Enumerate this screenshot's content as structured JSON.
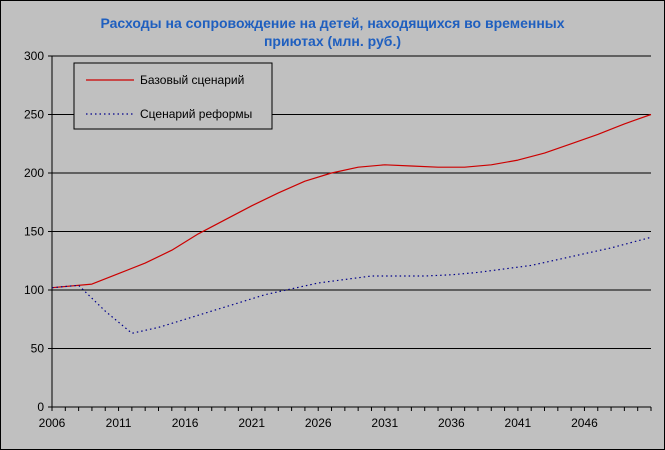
{
  "chart_data": {
    "type": "line",
    "title_line1": "Расходы на сопровождение на детей, находящихся во временных",
    "title_line2": "приютах (млн. руб.)",
    "xlabel": "",
    "ylabel": "",
    "xlim": [
      2006,
      2051
    ],
    "ylim": [
      0,
      300
    ],
    "yticks": [
      0,
      50,
      100,
      150,
      200,
      250,
      300
    ],
    "xticks": [
      2006,
      2011,
      2016,
      2021,
      2026,
      2031,
      2036,
      2041,
      2046
    ],
    "grid": "horizontal",
    "legend": "top-left",
    "series": [
      {
        "name": "Базовый сценарий",
        "color": "#cc0000",
        "style": "solid",
        "x": [
          2006,
          2009,
          2011,
          2013,
          2015,
          2017,
          2019,
          2021,
          2023,
          2025,
          2027,
          2029,
          2031,
          2033,
          2035,
          2037,
          2039,
          2041,
          2043,
          2045,
          2047,
          2049,
          2051
        ],
        "values": [
          102,
          105,
          114,
          123,
          134,
          148,
          160,
          172,
          183,
          193,
          200,
          205,
          207,
          206,
          205,
          205,
          207,
          211,
          217,
          225,
          233,
          242,
          250
        ]
      },
      {
        "name": "Сценарий реформы",
        "color": "#00008b",
        "style": "dotted",
        "x": [
          2006,
          2008,
          2010,
          2012,
          2014,
          2016,
          2018,
          2020,
          2022,
          2024,
          2026,
          2028,
          2030,
          2032,
          2034,
          2036,
          2038,
          2040,
          2042,
          2044,
          2046,
          2048,
          2051
        ],
        "values": [
          102,
          104,
          82,
          63,
          68,
          75,
          82,
          89,
          96,
          101,
          106,
          109,
          112,
          112,
          112,
          113,
          115,
          118,
          121,
          126,
          131,
          136,
          145
        ]
      }
    ]
  }
}
